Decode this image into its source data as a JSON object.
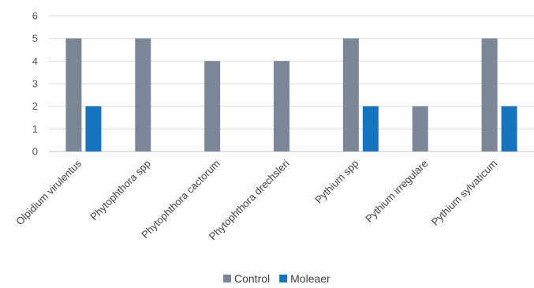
{
  "chart_data": {
    "type": "bar",
    "categories": [
      "Olpidium virulentus",
      "Phytophthora spp",
      "Phytophthora cactorum",
      "Phytophthora drechsleri",
      "Pythium spp",
      "Pythium irregulare",
      "Pythium sylvaticum"
    ],
    "series": [
      {
        "name": "Control",
        "color": "#7b8797",
        "values": [
          5,
          5,
          4,
          4,
          5,
          2,
          5
        ]
      },
      {
        "name": "Moleaer",
        "color": "#1474c0",
        "values": [
          2,
          0,
          0,
          0,
          2,
          0,
          2
        ]
      }
    ],
    "title": "",
    "xlabel": "",
    "ylabel": "",
    "ylim": [
      0,
      6
    ],
    "yticks": [
      0,
      1,
      2,
      3,
      4,
      5,
      6
    ],
    "grid": true,
    "legend_position": "bottom"
  }
}
